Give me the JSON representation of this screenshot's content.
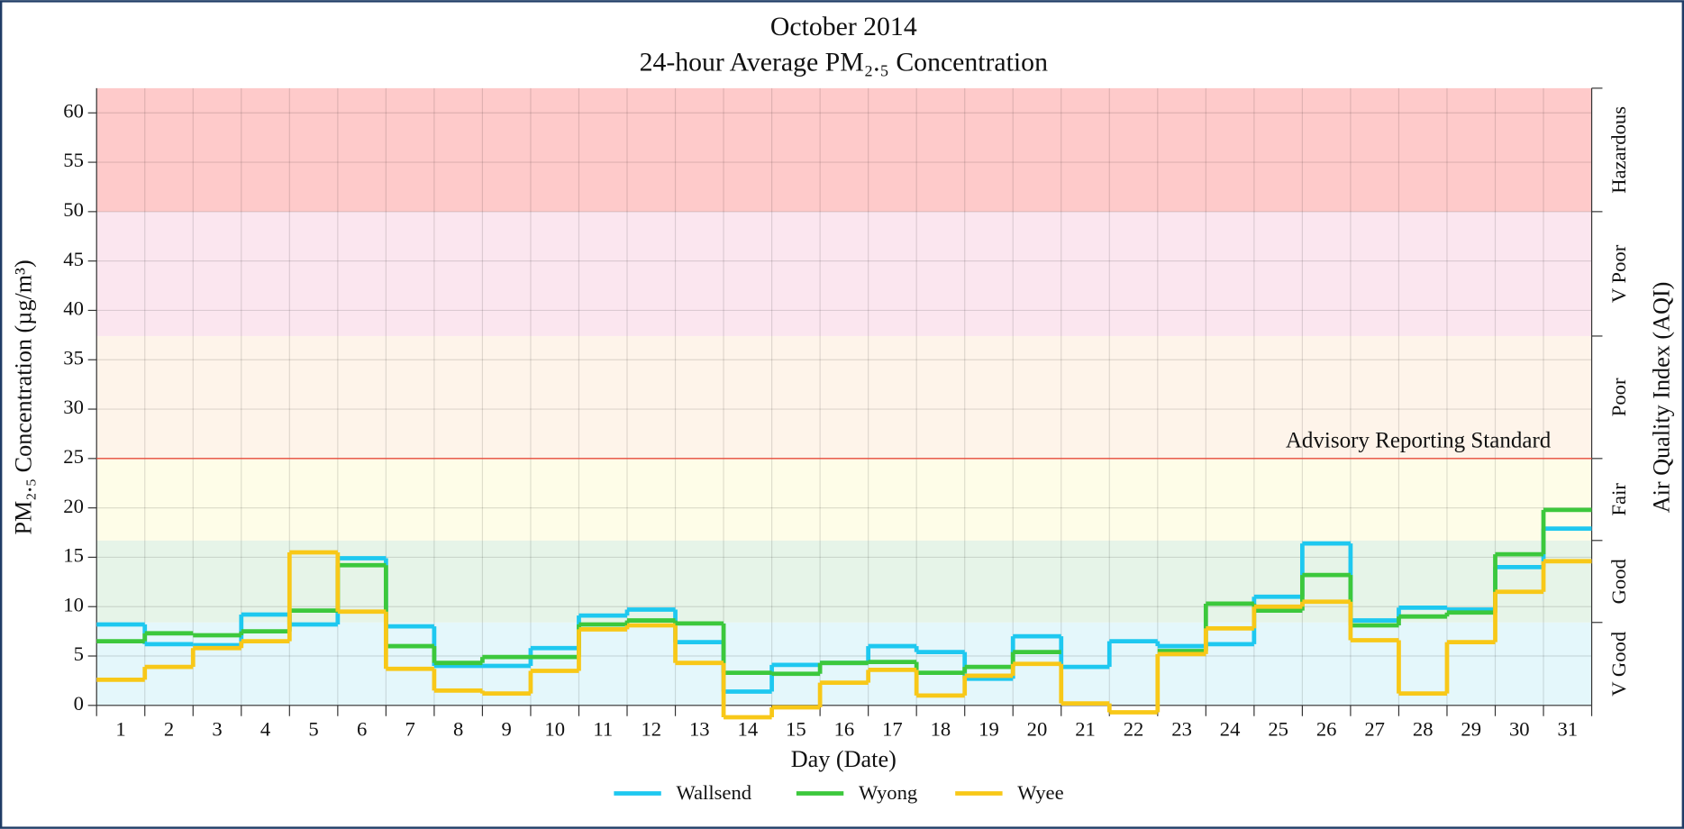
{
  "chart_data": {
    "type": "step",
    "title": "October 2014",
    "subtitle": "24-hour Average PM₂.₅ Concentration",
    "x_label": "Day (Date)",
    "y_label": "PM₂.₅ Concentration (µg/m³)",
    "y2_label": "Air Quality Index (AQI)",
    "categories": [
      "1",
      "2",
      "3",
      "4",
      "5",
      "6",
      "7",
      "8",
      "9",
      "10",
      "11",
      "12",
      "13",
      "14",
      "15",
      "16",
      "17",
      "18",
      "19",
      "20",
      "21",
      "22",
      "23",
      "24",
      "25",
      "26",
      "27",
      "28",
      "29",
      "30",
      "31"
    ],
    "ylim": [
      0,
      62.5
    ],
    "yticks": [
      0,
      5,
      10,
      15,
      20,
      25,
      30,
      35,
      40,
      45,
      50,
      55,
      60
    ],
    "grid": true,
    "legend": "bottom",
    "aqi_bands": [
      {
        "label": "V Good",
        "from": 0,
        "to": 8.4,
        "color": "#e4f7fb"
      },
      {
        "label": "Good",
        "from": 8.4,
        "to": 16.7,
        "color": "#e6f4e8"
      },
      {
        "label": "Fair",
        "from": 16.7,
        "to": 25,
        "color": "#fefde8"
      },
      {
        "label": "Poor",
        "from": 25,
        "to": 37.4,
        "color": "#fef4ea"
      },
      {
        "label": "V Poor",
        "from": 37.4,
        "to": 50,
        "color": "#fbe6ef"
      },
      {
        "label": "Hazardous",
        "from": 50,
        "to": 62.5,
        "color": "#fecaca"
      }
    ],
    "reference_line": {
      "value": 25,
      "label": "Advisory Reporting Standard",
      "color": "#e84b3c"
    },
    "series": [
      {
        "name": "Wallsend",
        "color": "#1ec8f0",
        "values": [
          8.2,
          6.2,
          6.1,
          9.2,
          8.2,
          14.9,
          8.0,
          4.0,
          4.0,
          5.8,
          9.1,
          9.7,
          6.4,
          1.4,
          4.1,
          4.3,
          6.0,
          5.4,
          2.7,
          7.0,
          3.9,
          6.5,
          6.0,
          6.2,
          11.0,
          16.4,
          8.6,
          9.9,
          9.7,
          14.0,
          17.9
        ]
      },
      {
        "name": "Wyong",
        "color": "#3cc83c",
        "values": [
          6.5,
          7.3,
          7.1,
          7.5,
          9.6,
          14.2,
          6.0,
          4.3,
          4.9,
          4.9,
          8.2,
          8.6,
          8.3,
          3.3,
          3.2,
          4.3,
          4.4,
          3.3,
          3.9,
          5.4,
          null,
          null,
          5.5,
          10.3,
          9.6,
          13.2,
          8.1,
          9.0,
          9.4,
          15.3,
          19.8
        ]
      },
      {
        "name": "Wyee",
        "color": "#f8c818",
        "values": [
          2.6,
          3.9,
          5.8,
          6.5,
          15.5,
          9.5,
          3.7,
          1.5,
          1.2,
          3.5,
          7.7,
          8.1,
          4.3,
          -1.2,
          -0.2,
          2.3,
          3.6,
          1.0,
          3.0,
          4.2,
          0.2,
          -0.7,
          5.2,
          7.8,
          10.0,
          10.5,
          6.6,
          1.2,
          6.4,
          11.5,
          14.6
        ]
      }
    ]
  }
}
